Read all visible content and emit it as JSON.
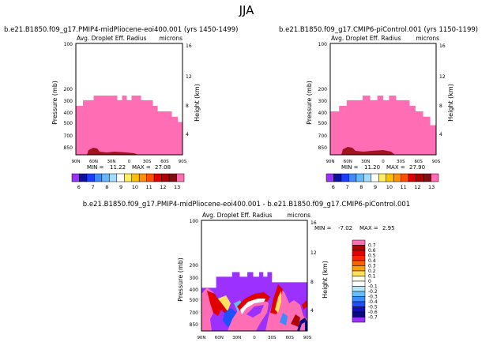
{
  "page": {
    "title": "JJA"
  },
  "chart_data": [
    {
      "type": "heatmap",
      "id": "panel1",
      "title": "b.e21.B1850.f09_g17.PMIP4-midPliocene-eoi400.001  (yrs 1450-1499)",
      "subtitle": "Avg. Droplet Eff. Radius",
      "units": "microns",
      "ylabel": "Pressure (mb)",
      "ylabel_right": "Height (km)",
      "x_ticks": [
        "90N",
        "60N",
        "30N",
        "0",
        "30S",
        "60S",
        "90S"
      ],
      "y_ticks": [
        "100",
        "200",
        "300",
        "400",
        "500",
        "700",
        "850"
      ],
      "y_ticks_right": [
        "16",
        "12",
        "8",
        "4"
      ],
      "min_label": "MIN =",
      "min_value": "11.22",
      "max_label": "MAX =",
      "max_value": "27.08",
      "colorbar_ticks": [
        "6",
        "7",
        "8",
        "9",
        "10",
        "11",
        "12",
        "13"
      ],
      "colorbar_colors": [
        "#9b30ff",
        "#1010a0",
        "#1e3cff",
        "#3c8cff",
        "#62b8ff",
        "#a0dcff",
        "#ffffff",
        "#ffee60",
        "#ffc000",
        "#ff9000",
        "#ff5000",
        "#e00000",
        "#b00000",
        "#801010",
        "#ff6eb4"
      ],
      "region_color": "#ff6eb4",
      "cloud_top_profile": [
        {
          "lat": 90,
          "p": 350
        },
        {
          "lat": 78,
          "p": 300
        },
        {
          "lat": 65,
          "p": 300
        },
        {
          "lat": 60,
          "p": 260
        },
        {
          "lat": 25,
          "p": 260
        },
        {
          "lat": 20,
          "p": 300
        },
        {
          "lat": 12,
          "p": 260
        },
        {
          "lat": 4,
          "p": 300
        },
        {
          "lat": -4,
          "p": 260
        },
        {
          "lat": -15,
          "p": 260
        },
        {
          "lat": -20,
          "p": 300
        },
        {
          "lat": -30,
          "p": 300
        },
        {
          "lat": -40,
          "p": 350
        },
        {
          "lat": -48,
          "p": 400
        },
        {
          "lat": -60,
          "p": 400
        },
        {
          "lat": -72,
          "p": 450
        },
        {
          "lat": -82,
          "p": 500
        },
        {
          "lat": -90,
          "p": 550
        }
      ]
    },
    {
      "type": "heatmap",
      "id": "panel2",
      "title": "b.e21.B1850.f09_g17.CMIP6-piControl.001  (yrs 1150-1199)",
      "subtitle": "Avg. Droplet Eff. Radius",
      "units": "microns",
      "ylabel": "Pressure (mb)",
      "ylabel_right": "Height (km)",
      "x_ticks": [
        "90N",
        "60N",
        "30N",
        "0",
        "30S",
        "60S",
        "90S"
      ],
      "y_ticks": [
        "100",
        "200",
        "300",
        "400",
        "500",
        "700",
        "850"
      ],
      "y_ticks_right": [
        "16",
        "12",
        "8",
        "4"
      ],
      "min_label": "MIN =",
      "min_value": "11.20",
      "max_label": "MAX =",
      "max_value": "27.90",
      "colorbar_ticks": [
        "6",
        "7",
        "8",
        "9",
        "10",
        "11",
        "12",
        "13"
      ],
      "colorbar_colors": [
        "#9b30ff",
        "#1010a0",
        "#1e3cff",
        "#3c8cff",
        "#62b8ff",
        "#a0dcff",
        "#ffffff",
        "#ffee60",
        "#ffc000",
        "#ff9000",
        "#ff5000",
        "#e00000",
        "#b00000",
        "#801010",
        "#ff6eb4"
      ],
      "region_color": "#ff6eb4",
      "cloud_top_profile": [
        {
          "lat": 90,
          "p": 400
        },
        {
          "lat": 75,
          "p": 350
        },
        {
          "lat": 62,
          "p": 300
        },
        {
          "lat": 45,
          "p": 300
        },
        {
          "lat": 35,
          "p": 260
        },
        {
          "lat": 22,
          "p": 300
        },
        {
          "lat": 10,
          "p": 260
        },
        {
          "lat": 0,
          "p": 300
        },
        {
          "lat": -10,
          "p": 260
        },
        {
          "lat": -22,
          "p": 300
        },
        {
          "lat": -35,
          "p": 300
        },
        {
          "lat": -45,
          "p": 350
        },
        {
          "lat": -55,
          "p": 400
        },
        {
          "lat": -68,
          "p": 450
        },
        {
          "lat": -80,
          "p": 550
        },
        {
          "lat": -90,
          "p": 650
        }
      ]
    },
    {
      "type": "heatmap",
      "id": "panel3",
      "title": "b.e21.B1850.f09_g17.PMIP4-midPliocene-eoi400.001  -  b.e21.B1850.f09_g17.CMIP6-piControl.001",
      "subtitle": "Avg. Droplet Eff. Radius",
      "units": "microns",
      "ylabel": "Pressure (mb)",
      "ylabel_right": "Height (km)",
      "x_ticks": [
        "90N",
        "60N",
        "30N",
        "0",
        "30S",
        "60S",
        "90S"
      ],
      "y_ticks": [
        "100",
        "200",
        "300",
        "400",
        "500",
        "700",
        "850"
      ],
      "y_ticks_right": [
        "16",
        "12",
        "8",
        "4"
      ],
      "min_label": "MIN =",
      "min_value": "-7.02",
      "max_label": "MAX =",
      "max_value": "2.95",
      "colorbar_ticks": [
        "0.7",
        "0.6",
        "0.5",
        "0.4",
        "0.3",
        "0.2",
        "0.1",
        "0",
        "-0.1",
        "-0.2",
        "-0.3",
        "-0.4",
        "-0.5",
        "-0.6",
        "-0.7"
      ],
      "colorbar_colors": [
        "#ff6eb4",
        "#b00000",
        "#e00000",
        "#ff2000",
        "#ff6000",
        "#ffa000",
        "#ffe060",
        "#fffff0",
        "#ffffff",
        "#b0e8ff",
        "#60c0ff",
        "#3c8cff",
        "#1e50ff",
        "#1010c0",
        "#0a0a80",
        "#9b30ff"
      ],
      "region_color": "#9b30ff",
      "cloud_top_profile": [
        {
          "lat": 90,
          "p": 400
        },
        {
          "lat": 65,
          "p": 300
        },
        {
          "lat": 45,
          "p": 300
        },
        {
          "lat": 38,
          "p": 260
        },
        {
          "lat": 25,
          "p": 300
        },
        {
          "lat": 12,
          "p": 260
        },
        {
          "lat": 2,
          "p": 300
        },
        {
          "lat": -8,
          "p": 260
        },
        {
          "lat": -15,
          "p": 300
        },
        {
          "lat": -22,
          "p": 260
        },
        {
          "lat": -30,
          "p": 350
        },
        {
          "lat": -90,
          "p": 350
        }
      ]
    }
  ]
}
